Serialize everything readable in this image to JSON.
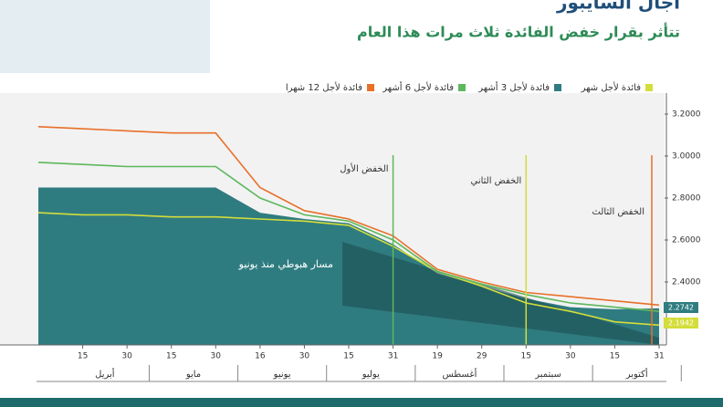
{
  "chart_data": {
    "type": "line",
    "title": "آجال السايبور",
    "subtitle": "تتأثر بقرار خفض الفائدة ثلاث مرات هذا العام",
    "categories": [
      null,
      "15",
      "30",
      "15",
      "30",
      "16",
      "30",
      "15",
      "31",
      "19",
      "29",
      "15",
      "30",
      "15",
      "31"
    ],
    "months": [
      "أبريل",
      "مايو",
      "يونيو",
      "يوليو",
      "أغسطس",
      "سبتمبر",
      "أكتوبر"
    ],
    "series": [
      {
        "name": "فائدة لأجل شهر",
        "color": "#d4dd3a",
        "values": [
          2.73,
          2.72,
          2.72,
          2.71,
          2.71,
          2.7,
          2.69,
          2.67,
          2.57,
          2.45,
          2.38,
          2.3,
          2.26,
          2.21,
          2.1942
        ],
        "value_labels": [
          null,
          null,
          null,
          null,
          null,
          null,
          null,
          null,
          null,
          null,
          null,
          null,
          null,
          null,
          "2.1942"
        ]
      },
      {
        "name": "فائدة لأجل 3 أشهر",
        "color": "#2f7c80",
        "values": [
          2.85,
          2.85,
          2.85,
          2.85,
          2.85,
          2.73,
          2.7,
          2.68,
          2.58,
          2.44,
          2.38,
          2.32,
          2.28,
          2.27,
          2.2742
        ],
        "value_labels": [
          null,
          null,
          null,
          null,
          null,
          null,
          null,
          null,
          null,
          null,
          null,
          null,
          null,
          null,
          "2.2742"
        ]
      },
      {
        "name": "فائدة لأجل 6 أشهر",
        "color": "#5cb85c",
        "values": [
          2.97,
          2.96,
          2.95,
          2.95,
          2.95,
          2.8,
          2.72,
          2.69,
          2.6,
          2.45,
          2.39,
          2.34,
          2.3,
          2.28,
          2.26
        ]
      },
      {
        "name": "فائدة لأجل 12 شهرا",
        "color": "#e8702a",
        "values": [
          3.14,
          3.13,
          3.12,
          3.11,
          3.11,
          2.85,
          2.74,
          2.7,
          2.62,
          2.46,
          2.4,
          2.35,
          2.33,
          2.31,
          2.29
        ]
      }
    ],
    "annotations": [
      "الخفض الأول",
      "الخفض الثاني",
      "الخفض الثالث",
      "مسار هبوطي منذ يونيو"
    ],
    "ylim": [
      2.1,
      3.3
    ],
    "yticks": [
      {
        "value": 2.4,
        "label": "2.4000"
      },
      {
        "value": 2.6,
        "label": "2.6000"
      },
      {
        "value": 2.8,
        "label": "2.8000"
      },
      {
        "value": 3.0,
        "label": "3.0000"
      },
      {
        "value": 3.2,
        "label": "3.2000"
      }
    ],
    "grid": false
  }
}
